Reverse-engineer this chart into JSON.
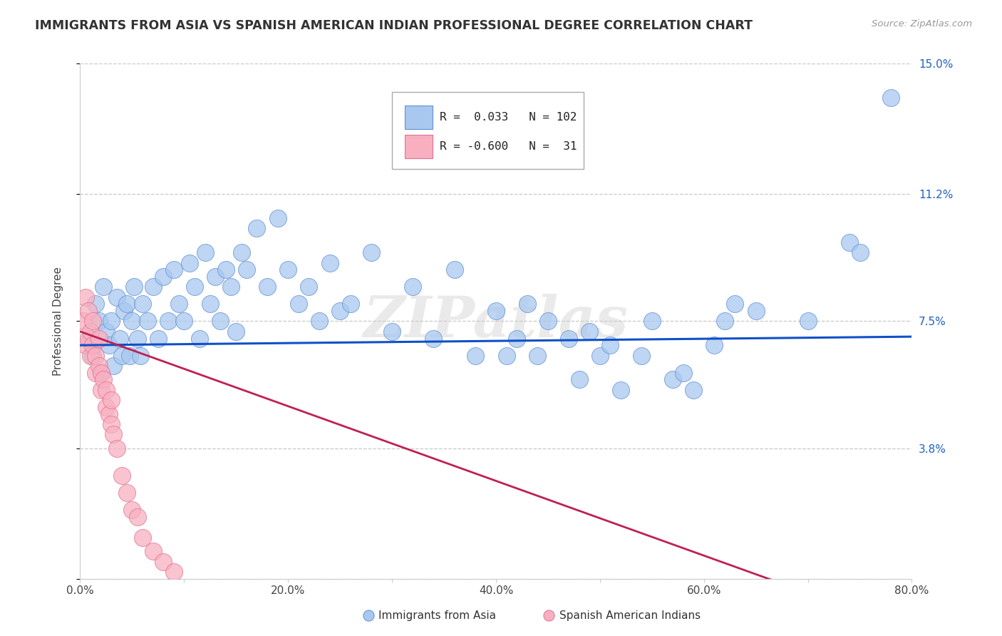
{
  "title": "IMMIGRANTS FROM ASIA VS SPANISH AMERICAN INDIAN PROFESSIONAL DEGREE CORRELATION CHART",
  "source": "Source: ZipAtlas.com",
  "ylabel": "Professional Degree",
  "xlim": [
    0.0,
    80.0
  ],
  "ylim": [
    0.0,
    15.0
  ],
  "xticks": [
    0.0,
    10.0,
    20.0,
    30.0,
    40.0,
    50.0,
    60.0,
    70.0,
    80.0
  ],
  "yticks": [
    0.0,
    3.8,
    7.5,
    11.2,
    15.0
  ],
  "xticklabels": [
    "0.0%",
    "",
    "20.0%",
    "",
    "40.0%",
    "",
    "60.0%",
    "",
    "80.0%"
  ],
  "yticklabels_right": [
    "",
    "3.8%",
    "7.5%",
    "11.2%",
    "15.0%"
  ],
  "blue_color": "#A8C8F0",
  "pink_color": "#F8B0C0",
  "blue_edge": "#6090D0",
  "pink_edge": "#E07090",
  "trendline_blue": "#1050C8",
  "trendline_pink": "#C02050",
  "watermark": "ZIPatlas",
  "blue_trendline_start_y": 6.8,
  "blue_trendline_end_y": 7.05,
  "pink_trendline_start_y": 7.2,
  "pink_trendline_end_y": -1.5,
  "blue_scatter_x": [
    1.0,
    1.2,
    1.5,
    1.8,
    2.0,
    2.2,
    2.5,
    2.8,
    3.0,
    3.2,
    3.5,
    3.8,
    4.0,
    4.2,
    4.5,
    4.8,
    5.0,
    5.2,
    5.5,
    5.8,
    6.0,
    6.5,
    7.0,
    7.5,
    8.0,
    8.5,
    9.0,
    9.5,
    10.0,
    10.5,
    11.0,
    11.5,
    12.0,
    12.5,
    13.0,
    13.5,
    14.0,
    14.5,
    15.0,
    15.5,
    16.0,
    17.0,
    18.0,
    19.0,
    20.0,
    21.0,
    22.0,
    23.0,
    24.0,
    25.0,
    26.0,
    28.0,
    30.0,
    32.0,
    34.0,
    36.0,
    38.0,
    40.0,
    41.0,
    42.0,
    43.0,
    44.0,
    45.0,
    47.0,
    48.0,
    49.0,
    50.0,
    51.0,
    52.0,
    54.0,
    55.0,
    57.0,
    58.0,
    59.0,
    61.0,
    62.0,
    63.0,
    65.0,
    70.0,
    74.0,
    75.0,
    78.0
  ],
  "blue_scatter_y": [
    7.0,
    6.5,
    8.0,
    7.5,
    6.0,
    8.5,
    7.2,
    6.8,
    7.5,
    6.2,
    8.2,
    7.0,
    6.5,
    7.8,
    8.0,
    6.5,
    7.5,
    8.5,
    7.0,
    6.5,
    8.0,
    7.5,
    8.5,
    7.0,
    8.8,
    7.5,
    9.0,
    8.0,
    7.5,
    9.2,
    8.5,
    7.0,
    9.5,
    8.0,
    8.8,
    7.5,
    9.0,
    8.5,
    7.2,
    9.5,
    9.0,
    10.2,
    8.5,
    10.5,
    9.0,
    8.0,
    8.5,
    7.5,
    9.2,
    7.8,
    8.0,
    9.5,
    7.2,
    8.5,
    7.0,
    9.0,
    6.5,
    7.8,
    6.5,
    7.0,
    8.0,
    6.5,
    7.5,
    7.0,
    5.8,
    7.2,
    6.5,
    6.8,
    5.5,
    6.5,
    7.5,
    5.8,
    6.0,
    5.5,
    6.8,
    7.5,
    8.0,
    7.8,
    7.5,
    9.8,
    9.5,
    14.0
  ],
  "pink_scatter_x": [
    0.3,
    0.5,
    0.5,
    0.8,
    0.8,
    1.0,
    1.0,
    1.2,
    1.2,
    1.5,
    1.5,
    1.8,
    1.8,
    2.0,
    2.0,
    2.2,
    2.5,
    2.5,
    2.8,
    3.0,
    3.0,
    3.2,
    3.5,
    4.0,
    4.5,
    5.0,
    5.5,
    6.0,
    7.0,
    8.0,
    9.0
  ],
  "pink_scatter_y": [
    7.5,
    6.8,
    8.2,
    7.0,
    7.8,
    6.5,
    7.2,
    6.8,
    7.5,
    6.0,
    6.5,
    7.0,
    6.2,
    5.5,
    6.0,
    5.8,
    5.0,
    5.5,
    4.8,
    4.5,
    5.2,
    4.2,
    3.8,
    3.0,
    2.5,
    2.0,
    1.8,
    1.2,
    0.8,
    0.5,
    0.2
  ]
}
